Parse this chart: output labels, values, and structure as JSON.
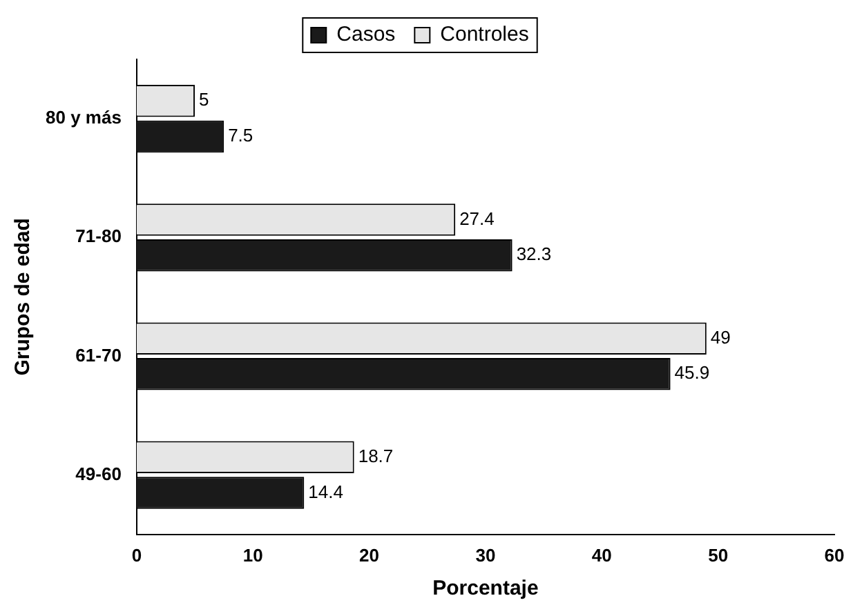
{
  "chart_data": {
    "type": "bar",
    "orientation": "horizontal",
    "xlabel": "Porcentaje",
    "ylabel": "Grupos de edad",
    "categories": [
      "80 y más",
      "71-80",
      "61-70",
      "49-60"
    ],
    "series": [
      {
        "name": "Casos",
        "color": "#1a1a1a",
        "values": [
          7.5,
          32.3,
          45.9,
          14.4
        ]
      },
      {
        "name": "Controles",
        "color": "#e6e6e6",
        "values": [
          5,
          27.4,
          49,
          18.7
        ]
      }
    ],
    "xlim": [
      0,
      60
    ],
    "xticks": [
      0,
      10,
      20,
      30,
      40,
      50,
      60
    ],
    "grid": false,
    "legend": "top",
    "data_labels": true
  }
}
